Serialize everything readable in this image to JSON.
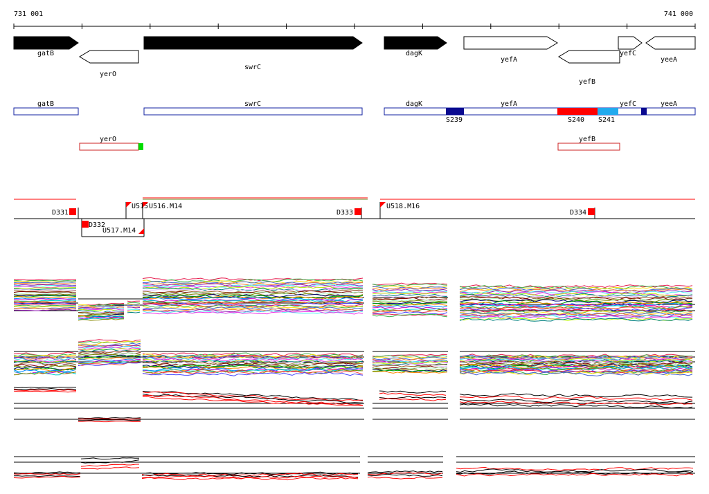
{
  "coordinates": {
    "start_label": "731 001",
    "end_label": "741 000"
  },
  "colors": {
    "gene_fill": "#000000",
    "feature_outline_blue": "#1020a0",
    "feature_outline_red": "#cc2020",
    "marker_red": "#ff0000",
    "marker_green": "#00dd00",
    "segment_darkblue": "#0a0a90",
    "segment_red": "#ff0000",
    "segment_lightblue": "#22aaee"
  },
  "genes": [
    {
      "name": "gatB",
      "strand": "forward",
      "filled": true
    },
    {
      "name": "yerO",
      "strand": "reverse",
      "filled": false
    },
    {
      "name": "swrC",
      "strand": "forward",
      "filled": true
    },
    {
      "name": "dagK",
      "strand": "forward",
      "filled": true
    },
    {
      "name": "yefA",
      "strand": "forward",
      "filled": false
    },
    {
      "name": "yefB",
      "strand": "reverse",
      "filled": false
    },
    {
      "name": "yefC",
      "strand": "forward",
      "filled": false
    },
    {
      "name": "yeeA",
      "strand": "reverse",
      "filled": false
    }
  ],
  "feature_track_1": {
    "labels": [
      "gatB",
      "swrC",
      "dagK",
      "yefA",
      "yefC",
      "yeeA"
    ],
    "segments": [
      "S239",
      "S240",
      "S241"
    ]
  },
  "feature_track_2": {
    "labels": [
      "yerO",
      "yefB"
    ]
  },
  "markers": [
    "D331",
    "D332",
    "U515",
    "U516.M14",
    "D333",
    "U518.M16",
    "D334",
    "U517.M14"
  ],
  "expression_panels": [
    {
      "kind": "many-conditions-upper"
    },
    {
      "kind": "many-conditions-lower"
    },
    {
      "kind": "few-conditions-upper"
    },
    {
      "kind": "few-conditions-lower"
    }
  ]
}
